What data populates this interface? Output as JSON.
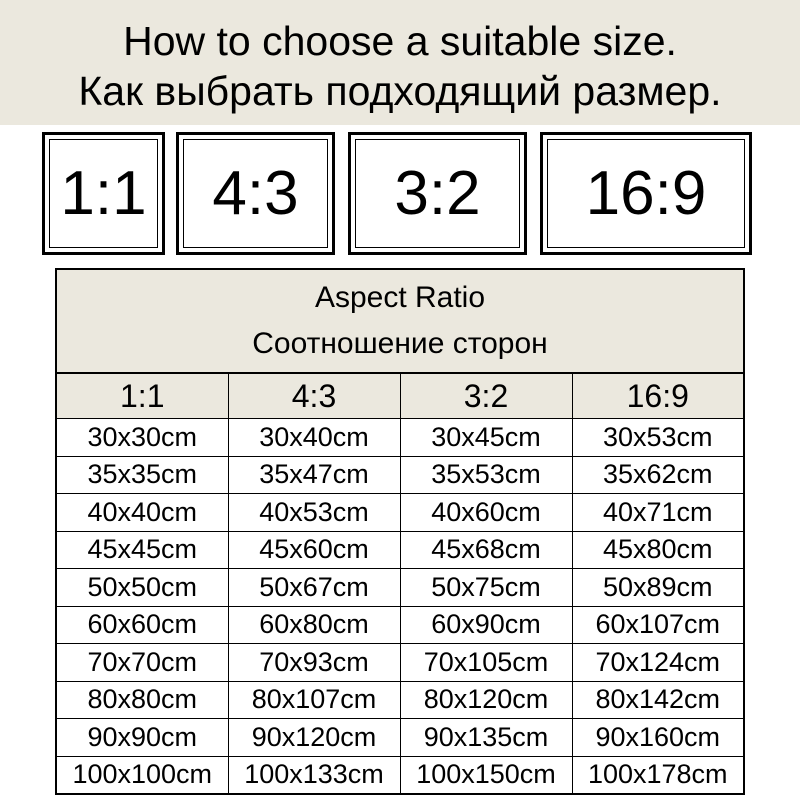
{
  "header": {
    "title": [
      "How to choose a suitable size.",
      "Как выбрать подходящий размер."
    ]
  },
  "ratios": [
    "1:1",
    "4:3",
    "3:2",
    "16:9"
  ],
  "table": {
    "title": [
      "Aspect Ratio",
      "Соотношение сторон"
    ],
    "columns": [
      "1:1",
      "4:3",
      "3:2",
      "16:9"
    ],
    "rows": [
      [
        "30x30cm",
        "30x40cm",
        "30x45cm",
        "30x53cm"
      ],
      [
        "35x35cm",
        "35x47cm",
        "35x53cm",
        "35x62cm"
      ],
      [
        "40x40cm",
        "40x53cm",
        "40x60cm",
        "40x71cm"
      ],
      [
        "45x45cm",
        "45x60cm",
        "45x68cm",
        "45x80cm"
      ],
      [
        "50x50cm",
        "50x67cm",
        "50x75cm",
        "50x89cm"
      ],
      [
        "60x60cm",
        "60x80cm",
        "60x90cm",
        "60x107cm"
      ],
      [
        "70x70cm",
        "70x93cm",
        "70x105cm",
        "70x124cm"
      ],
      [
        "80x80cm",
        "80x107cm",
        "80x120cm",
        "80x142cm"
      ],
      [
        "90x90cm",
        "90x120cm",
        "90x135cm",
        "90x160cm"
      ],
      [
        "100x100cm",
        "100x133cm",
        "100x150cm",
        "100x178cm"
      ]
    ]
  }
}
